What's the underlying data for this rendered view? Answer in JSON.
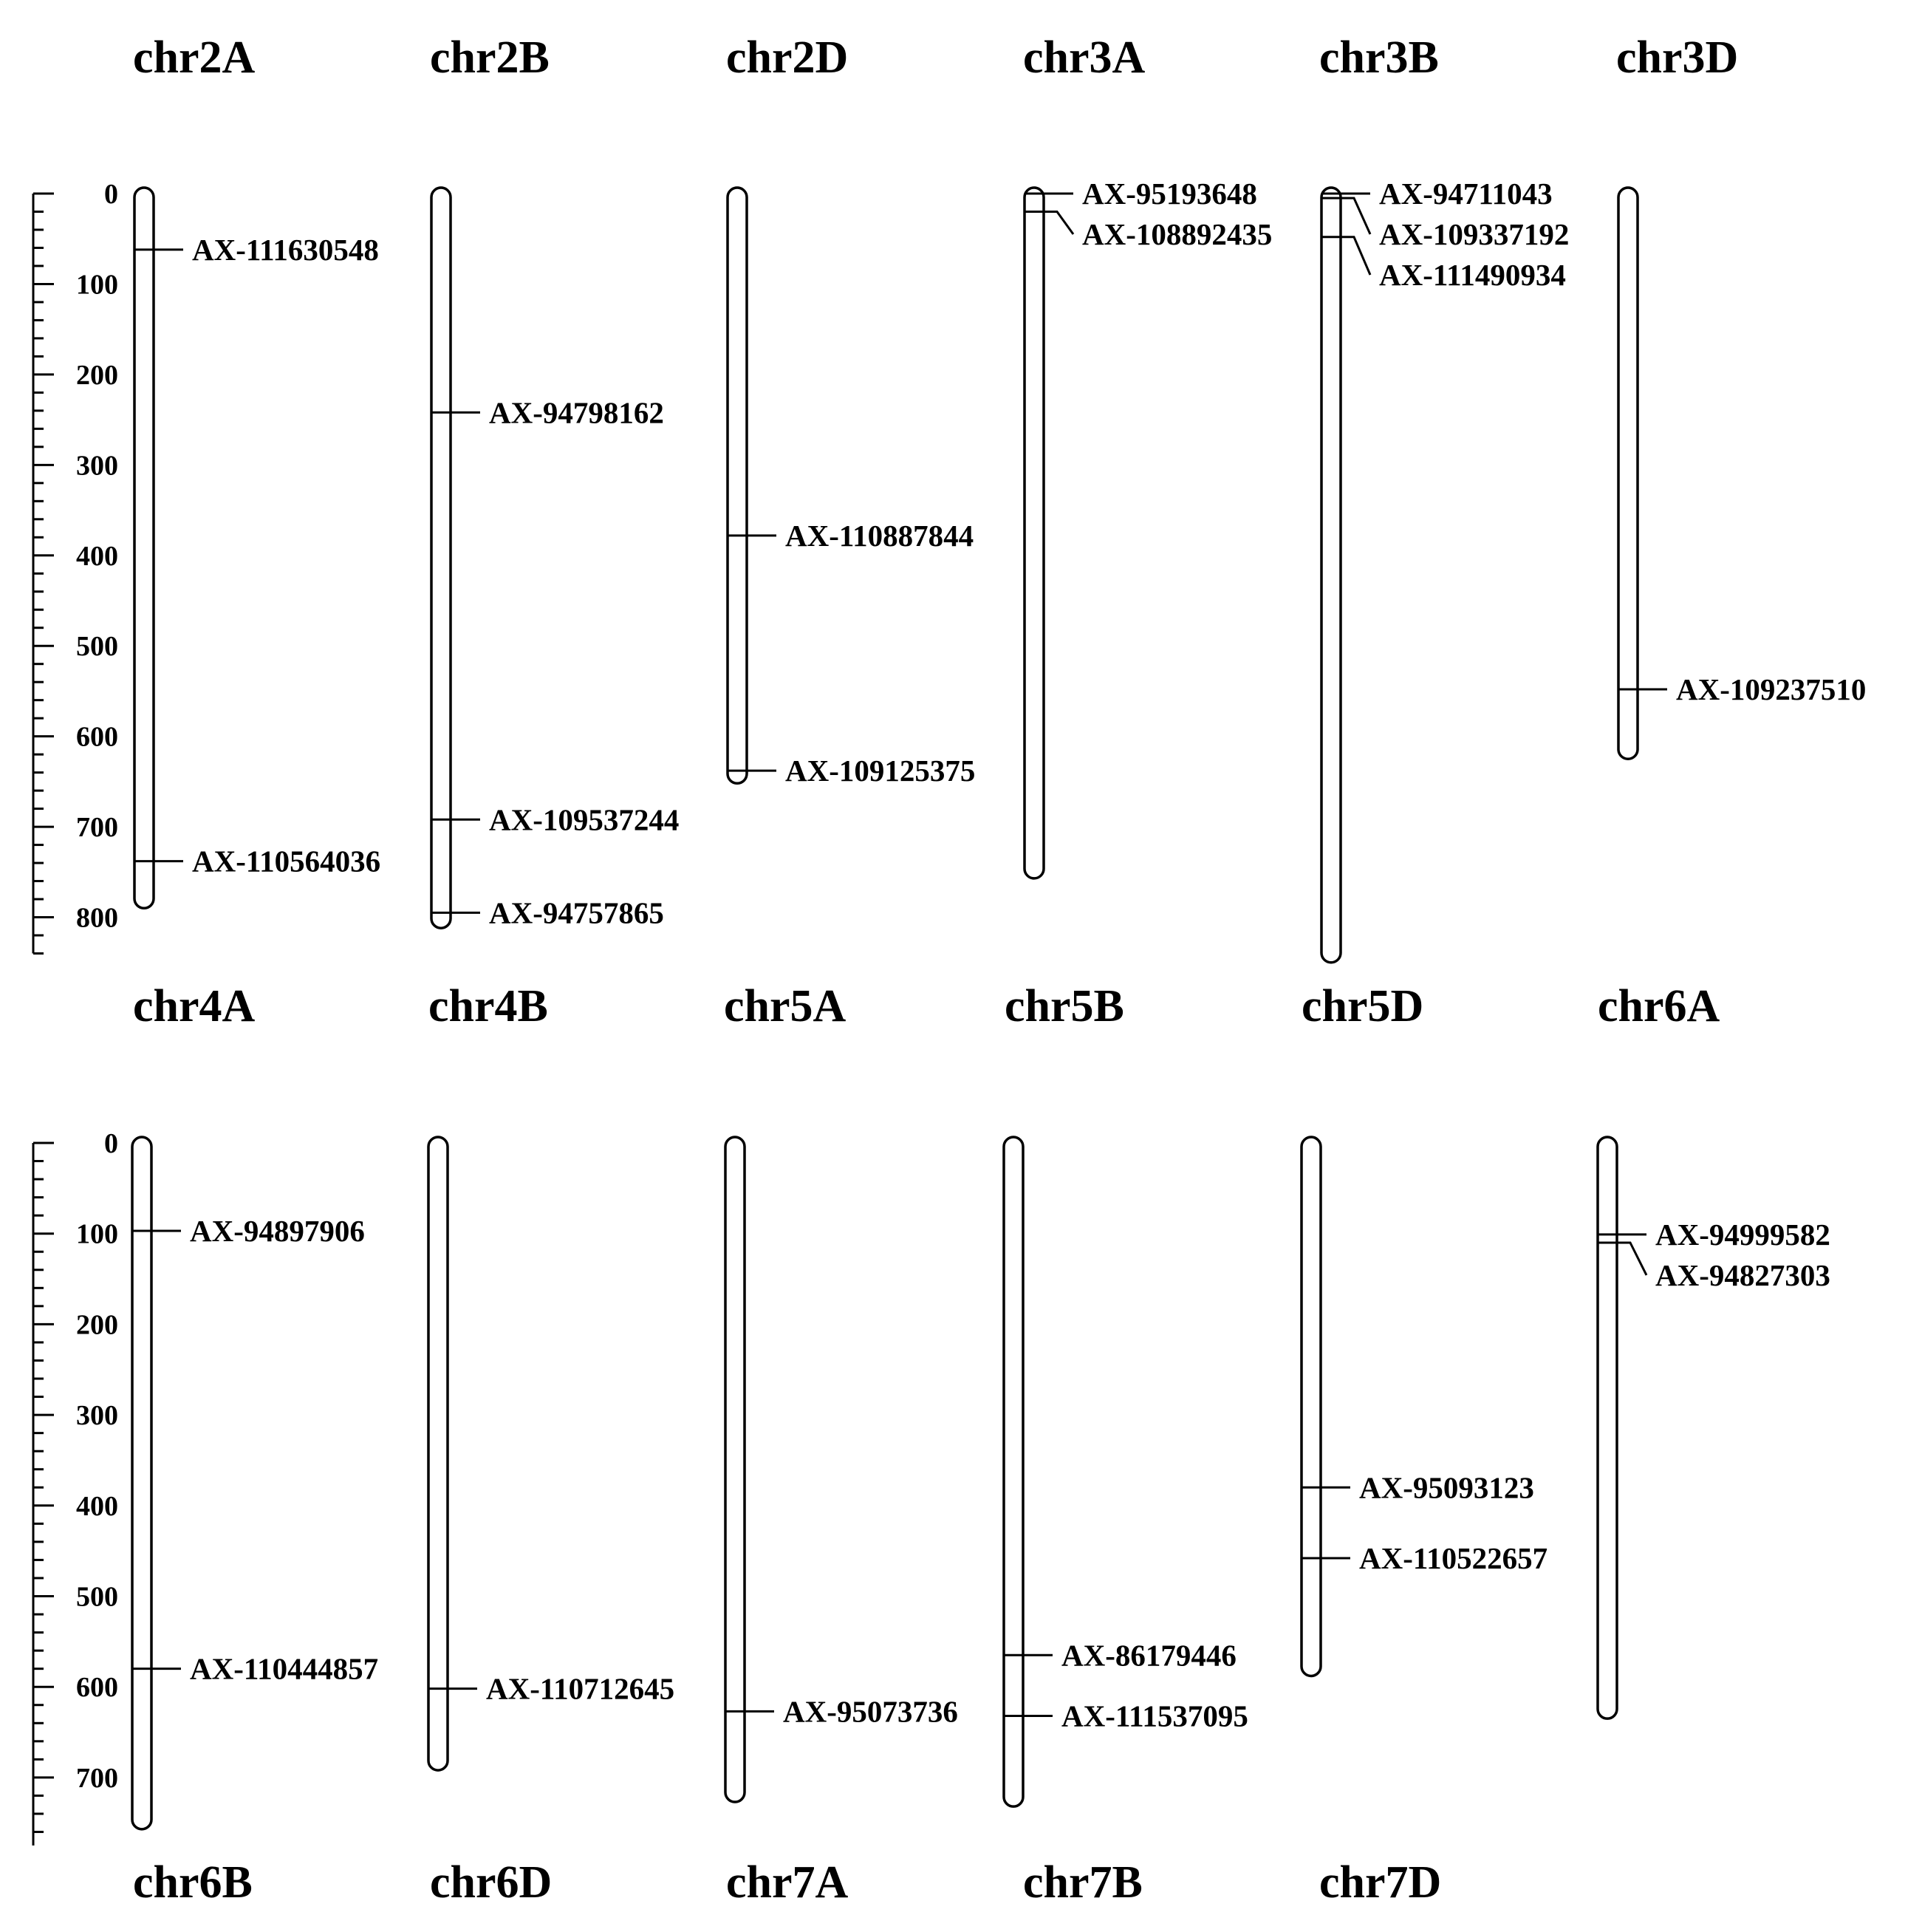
{
  "labels": {
    "row1_top": [
      "chr2A",
      "chr2B",
      "chr2D",
      "chr3A",
      "chr3B",
      "chr3D"
    ],
    "row1_bottom": [
      "chr4A",
      "chr4B",
      "chr5A",
      "chr5B",
      "chr5D",
      "chr6A"
    ],
    "row2_bottom": [
      "chr6B",
      "chr6D",
      "chr7A",
      "chr7B",
      "chr7D"
    ]
  },
  "panels": [
    {
      "scale": {
        "max": 840,
        "major": 100,
        "minor": 20,
        "labels": [
          0,
          100,
          200,
          300,
          400,
          500,
          600,
          700,
          800
        ]
      },
      "chromosomes": [
        {
          "length": 790,
          "markers": [
            {
              "name": "AX-111630548",
              "pos": 62
            },
            {
              "name": "AX-110564036",
              "pos": 738
            }
          ]
        },
        {
          "length": 812,
          "markers": [
            {
              "name": "AX-94798162",
              "pos": 242
            },
            {
              "name": "AX-109537244",
              "pos": 692
            },
            {
              "name": "AX-94757865",
              "pos": 795
            }
          ]
        },
        {
          "length": 652,
          "markers": [
            {
              "name": "AX-110887844",
              "pos": 378
            },
            {
              "name": "AX-109125375",
              "pos": 638
            }
          ]
        },
        {
          "length": 757,
          "markers": [
            {
              "name": "AX-95193648",
              "pos": 0
            },
            {
              "name": "AX-108892435",
              "pos": 20
            }
          ]
        },
        {
          "length": 850,
          "markers": [
            {
              "name": "AX-94711043",
              "pos": 0
            },
            {
              "name": "AX-109337192",
              "pos": 5
            },
            {
              "name": "AX-111490934",
              "pos": 48
            }
          ]
        },
        {
          "length": 625,
          "markers": [
            {
              "name": "AX-109237510",
              "pos": 548
            }
          ]
        }
      ]
    },
    {
      "scale": {
        "max": 775,
        "major": 100,
        "minor": 20,
        "labels": [
          0,
          100,
          200,
          300,
          400,
          500,
          600,
          700
        ]
      },
      "chromosomes": [
        {
          "length": 757,
          "markers": [
            {
              "name": "AX-94897906",
              "pos": 97
            },
            {
              "name": "AX-110444857",
              "pos": 580
            }
          ]
        },
        {
          "length": 692,
          "markers": [
            {
              "name": "AX-110712645",
              "pos": 602
            }
          ]
        },
        {
          "length": 727,
          "markers": [
            {
              "name": "AX-95073736",
              "pos": 627
            }
          ]
        },
        {
          "length": 732,
          "markers": [
            {
              "name": "AX-86179446",
              "pos": 565
            },
            {
              "name": "AX-111537095",
              "pos": 632
            }
          ]
        },
        {
          "length": 588,
          "markers": [
            {
              "name": "AX-95093123",
              "pos": 380
            },
            {
              "name": "AX-110522657",
              "pos": 458
            }
          ]
        },
        {
          "length": 635,
          "markers": [
            {
              "name": "AX-94999582",
              "pos": 101
            },
            {
              "name": "AX-94827303",
              "pos": 110
            }
          ]
        }
      ]
    }
  ]
}
